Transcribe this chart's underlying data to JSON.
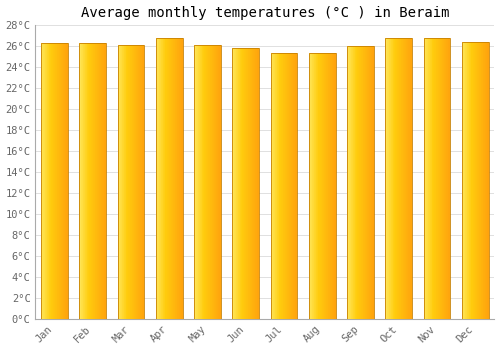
{
  "title": "Average monthly temperatures (°C ) in Beraim",
  "months": [
    "Jan",
    "Feb",
    "Mar",
    "Apr",
    "May",
    "Jun",
    "Jul",
    "Aug",
    "Sep",
    "Oct",
    "Nov",
    "Dec"
  ],
  "values": [
    26.3,
    26.3,
    26.1,
    26.8,
    26.1,
    25.8,
    25.3,
    25.3,
    26.0,
    26.8,
    26.8,
    26.4
  ],
  "ylim": [
    0,
    28
  ],
  "yticks": [
    0,
    2,
    4,
    6,
    8,
    10,
    12,
    14,
    16,
    18,
    20,
    22,
    24,
    26,
    28
  ],
  "ytick_labels": [
    "0°C",
    "2°C",
    "4°C",
    "6°C",
    "8°C",
    "10°C",
    "12°C",
    "14°C",
    "16°C",
    "18°C",
    "20°C",
    "22°C",
    "24°C",
    "26°C",
    "28°C"
  ],
  "bar_color_light": "#FFD966",
  "bar_color_dark": "#F4A300",
  "bar_edge_color": "#C88000",
  "background_color": "#FFFFFF",
  "grid_color": "#E0E0E0",
  "title_fontsize": 10,
  "tick_fontsize": 7.5,
  "bar_width": 0.7,
  "n_gradient_cols": 40
}
